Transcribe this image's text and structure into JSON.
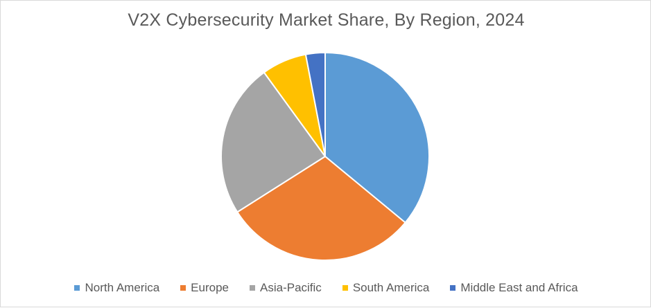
{
  "chart_data": {
    "type": "pie",
    "title": "V2X Cybersecurity Market Share, By Region, 2024",
    "categories": [
      "North America",
      "Europe",
      "Asia-Pacific",
      "South America",
      "Middle East and Africa"
    ],
    "values": [
      36,
      30,
      24,
      7,
      3
    ],
    "colors": [
      "#5b9bd5",
      "#ed7d31",
      "#a5a5a5",
      "#ffc000",
      "#4472c4"
    ],
    "legend_position": "bottom",
    "start_angle_deg": 0,
    "direction": "clockwise"
  }
}
